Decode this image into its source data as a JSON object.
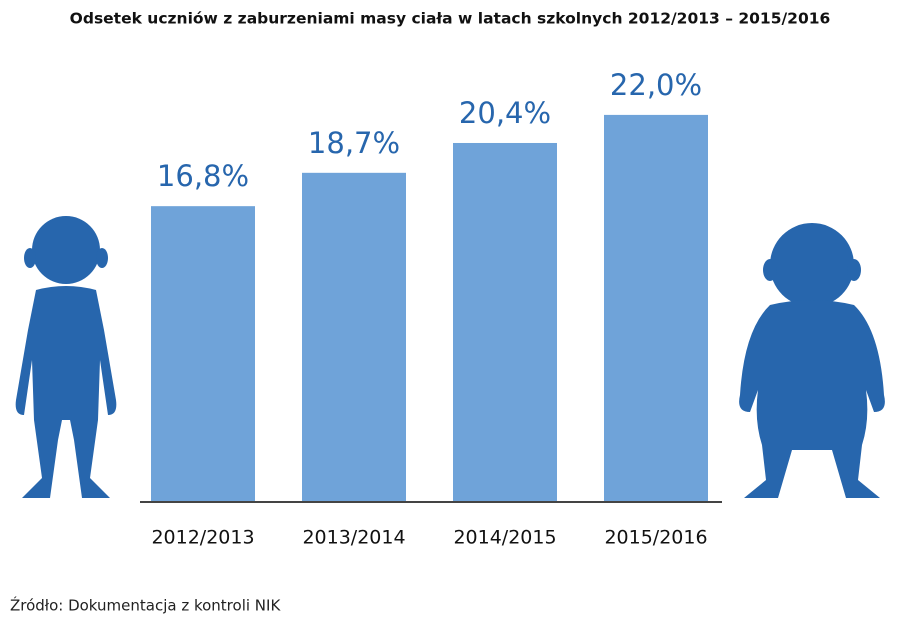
{
  "chart_data": {
    "type": "bar",
    "title": "Odsetek uczniów z zaburzeniami masy ciała w latach szkolnych 2012/2013 – 2015/2016",
    "categories": [
      "2012/2013",
      "2013/2014",
      "2014/2015",
      "2015/2016"
    ],
    "values": [
      16.8,
      18.7,
      20.4,
      22.0
    ],
    "value_labels": [
      "16,8%",
      "18,7%",
      "20,4%",
      "22,0%"
    ],
    "color": "#6fa3d9",
    "source": "Źródło: Dokumentacja z kontroli NIK"
  }
}
